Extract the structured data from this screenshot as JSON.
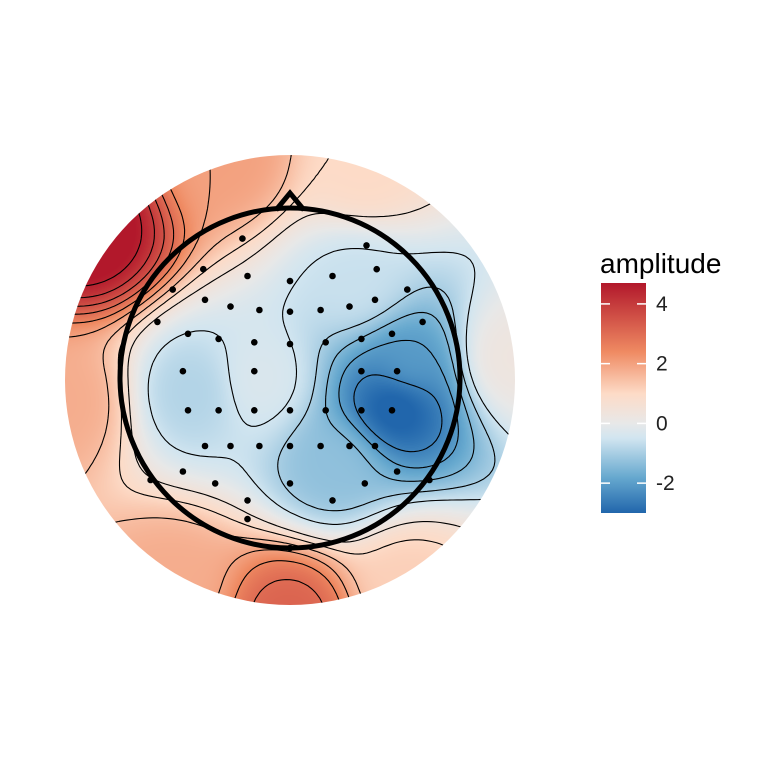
{
  "chart_data": {
    "type": "heatmap",
    "subtype": "eeg-topographic-map",
    "title": "",
    "legend": {
      "title": "amplitude",
      "ticks": [
        4,
        2,
        0,
        -2
      ],
      "tick_labels": [
        "4",
        "2",
        "0",
        "-2"
      ],
      "range": [
        -3.0,
        4.7
      ],
      "placement": "right"
    },
    "colors": {
      "high": "#b2182b",
      "mid_high": "#ef8a62",
      "mid_light": "#fddbc7",
      "neutral": "#e8e8e8",
      "mid_low_light": "#d1e5f0",
      "mid_low": "#67a9cf",
      "low": "#2166ac",
      "contour": "#000000",
      "electrode": "#000000",
      "head_outline": "#000000"
    },
    "contour_levels": [
      -2.5,
      -2.0,
      -1.5,
      -1.0,
      -0.5,
      0.5,
      1.0,
      1.5,
      2.0,
      2.5,
      3.0,
      3.5,
      4.0,
      4.5
    ],
    "scalp_sources": [
      {
        "x": -0.95,
        "y": 0.7,
        "amplitude": 5.0
      },
      {
        "x": -0.3,
        "y": 1.05,
        "amplitude": 2.0
      },
      {
        "x": 0.35,
        "y": 1.0,
        "amplitude": 1.0
      },
      {
        "x": -1.05,
        "y": -0.1,
        "amplitude": 1.8
      },
      {
        "x": 0.0,
        "y": -1.1,
        "amplitude": 3.2
      },
      {
        "x": -0.55,
        "y": -0.95,
        "amplitude": 1.8
      },
      {
        "x": 0.55,
        "y": -0.95,
        "amplitude": 1.2
      },
      {
        "x": 1.02,
        "y": 0.1,
        "amplitude": 0.3
      },
      {
        "x": 0.5,
        "y": -0.1,
        "amplitude": -3.3
      },
      {
        "x": 0.55,
        "y": 0.05,
        "amplitude": -2.0
      },
      {
        "x": 0.2,
        "y": -0.4,
        "amplitude": -1.3
      },
      {
        "x": -0.45,
        "y": -0.05,
        "amplitude": -0.9
      },
      {
        "x": -0.15,
        "y": 0.0,
        "amplitude": -0.3
      },
      {
        "x": 0.3,
        "y": 0.45,
        "amplitude": -0.6
      }
    ],
    "electrodes": [
      {
        "x": -0.28,
        "y": 0.82
      },
      {
        "x": 0.45,
        "y": 0.78
      },
      {
        "x": -0.51,
        "y": 0.64
      },
      {
        "x": -0.25,
        "y": 0.6
      },
      {
        "x": 0.0,
        "y": 0.57
      },
      {
        "x": 0.25,
        "y": 0.6
      },
      {
        "x": 0.51,
        "y": 0.64
      },
      {
        "x": -0.69,
        "y": 0.52
      },
      {
        "x": -0.5,
        "y": 0.46
      },
      {
        "x": -0.35,
        "y": 0.42
      },
      {
        "x": -0.18,
        "y": 0.4
      },
      {
        "x": 0.0,
        "y": 0.39
      },
      {
        "x": 0.18,
        "y": 0.4
      },
      {
        "x": 0.35,
        "y": 0.42
      },
      {
        "x": 0.5,
        "y": 0.46
      },
      {
        "x": 0.69,
        "y": 0.52
      },
      {
        "x": -0.78,
        "y": 0.33
      },
      {
        "x": -0.6,
        "y": 0.26
      },
      {
        "x": -0.42,
        "y": 0.23
      },
      {
        "x": -0.21,
        "y": 0.21
      },
      {
        "x": 0.0,
        "y": 0.2
      },
      {
        "x": 0.21,
        "y": 0.21
      },
      {
        "x": 0.42,
        "y": 0.23
      },
      {
        "x": 0.6,
        "y": 0.26
      },
      {
        "x": 0.78,
        "y": 0.33
      },
      {
        "x": -0.63,
        "y": 0.04
      },
      {
        "x": -0.21,
        "y": 0.04
      },
      {
        "x": 0.42,
        "y": 0.04
      },
      {
        "x": 0.63,
        "y": 0.04
      },
      {
        "x": -0.6,
        "y": -0.19
      },
      {
        "x": -0.42,
        "y": -0.19
      },
      {
        "x": -0.21,
        "y": -0.19
      },
      {
        "x": 0.0,
        "y": -0.19
      },
      {
        "x": 0.21,
        "y": -0.19
      },
      {
        "x": 0.42,
        "y": -0.19
      },
      {
        "x": 0.6,
        "y": -0.19
      },
      {
        "x": -0.5,
        "y": -0.4
      },
      {
        "x": -0.35,
        "y": -0.4
      },
      {
        "x": -0.18,
        "y": -0.4
      },
      {
        "x": 0.0,
        "y": -0.4
      },
      {
        "x": 0.18,
        "y": -0.4
      },
      {
        "x": 0.35,
        "y": -0.4
      },
      {
        "x": 0.5,
        "y": -0.4
      },
      {
        "x": -0.63,
        "y": -0.55
      },
      {
        "x": 0.63,
        "y": -0.55
      },
      {
        "x": -0.82,
        "y": -0.6
      },
      {
        "x": -0.44,
        "y": -0.62
      },
      {
        "x": 0.0,
        "y": -0.62
      },
      {
        "x": 0.44,
        "y": -0.62
      },
      {
        "x": 0.82,
        "y": -0.6
      },
      {
        "x": -0.25,
        "y": -0.72
      },
      {
        "x": 0.25,
        "y": -0.72
      },
      {
        "x": -0.25,
        "y": -0.83
      },
      {
        "x": 0.0,
        "y": -1.0
      }
    ]
  }
}
